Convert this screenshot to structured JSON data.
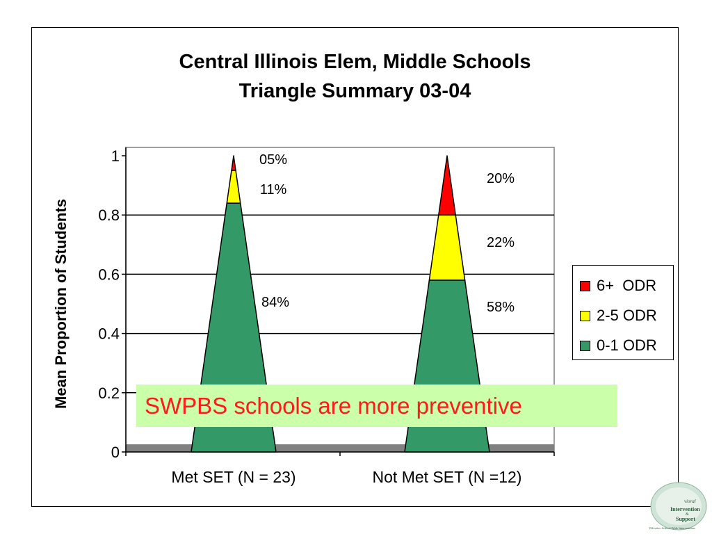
{
  "title_line1": "Central Illinois Elem, Middle Schools",
  "title_line2": "Triangle Summary 03-04",
  "callout": "SWPBS schools are more preventive",
  "logo": {
    "text": "Positive Behavioral Intervention & Support Effective School-Wide Interventions"
  },
  "chart_data": {
    "type": "bar",
    "stacked": true,
    "bar_shape": "triangle",
    "ylabel": "Mean Proportion of Students",
    "ylim": [
      0,
      1
    ],
    "yticks": [
      "0",
      "0.2",
      "0.4",
      "0.6",
      "0.8",
      "1"
    ],
    "categories": [
      "Met SET (N = 23)",
      "Not Met SET (N =12)"
    ],
    "series": [
      {
        "name": "0-1 ODR",
        "values": [
          0.84,
          0.58
        ],
        "labels": [
          "84%",
          "58%"
        ],
        "color": "#339966"
      },
      {
        "name": "2-5 ODR",
        "values": [
          0.11,
          0.22
        ],
        "labels": [
          "11%",
          "22%"
        ],
        "color": "#ffff00"
      },
      {
        "name": "6+  ODR",
        "values": [
          0.05,
          0.2
        ],
        "labels": [
          "05%",
          "20%"
        ],
        "color": "#ff0000"
      }
    ],
    "legend_order": [
      "6+  ODR",
      "2-5 ODR",
      "0-1 ODR"
    ],
    "grid": true,
    "legend_position": "right"
  }
}
